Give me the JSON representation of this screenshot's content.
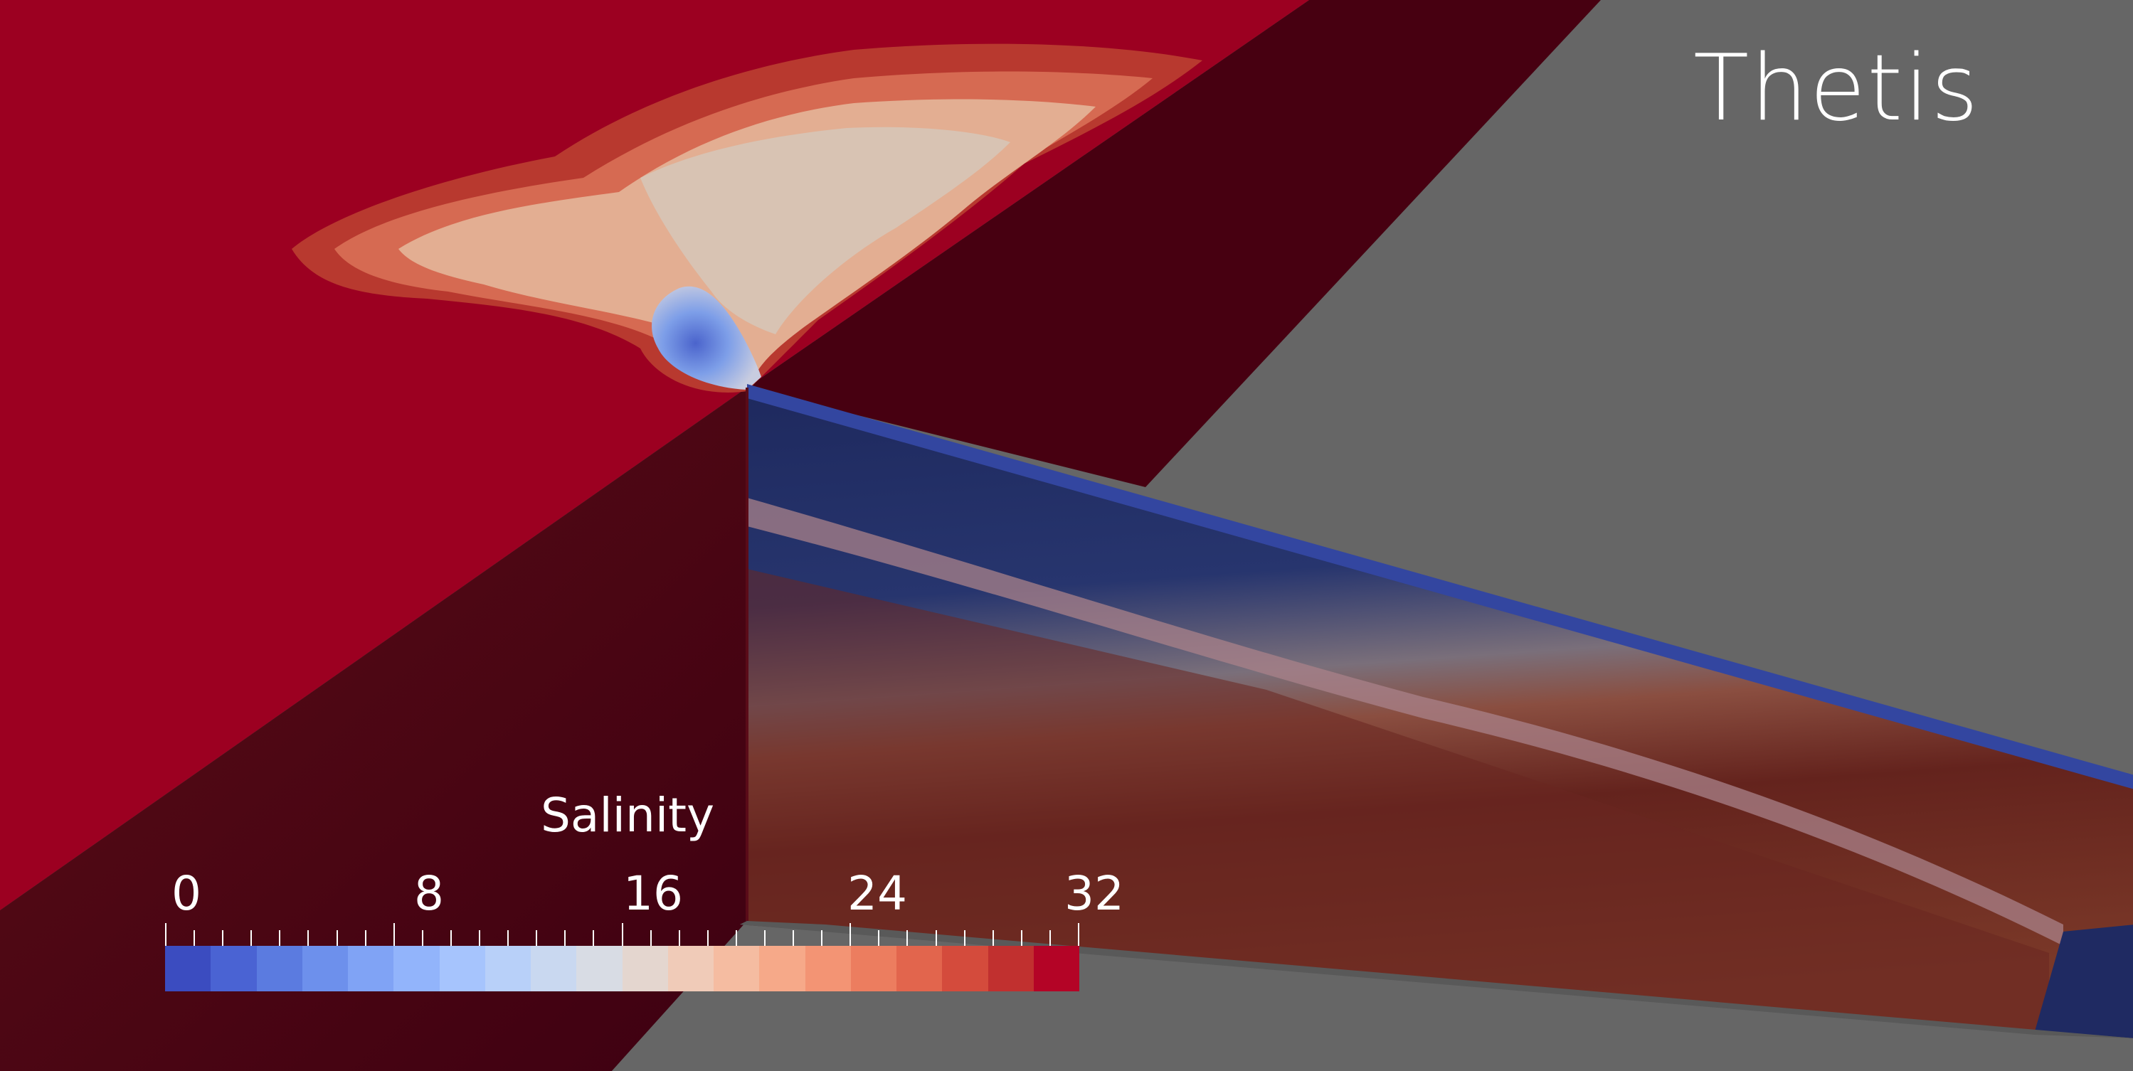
{
  "title": "Thetis",
  "colorbar": {
    "title": "Salinity",
    "ticks": [
      "0",
      "8",
      "16",
      "24",
      "32"
    ],
    "min": 0,
    "max": 32,
    "colors": [
      "#3b4cc0",
      "#4a63d3",
      "#5b7be0",
      "#6d90ec",
      "#80a3f5",
      "#92b4fb",
      "#a6c4fd",
      "#b8d0f9",
      "#c9d8f0",
      "#d8dce4",
      "#e4d6cf",
      "#f0cbb8",
      "#f5bca1",
      "#f6a989",
      "#f39474",
      "#ec7d5f",
      "#e2654d",
      "#d44b3c",
      "#c1302f",
      "#b40426"
    ]
  },
  "scene": {
    "background": "#666666",
    "surface_color": "#9c0021",
    "shadow_color": "#4a0010",
    "blue_layer": "#1f2a62",
    "surface_stripe": "#3346a0"
  }
}
